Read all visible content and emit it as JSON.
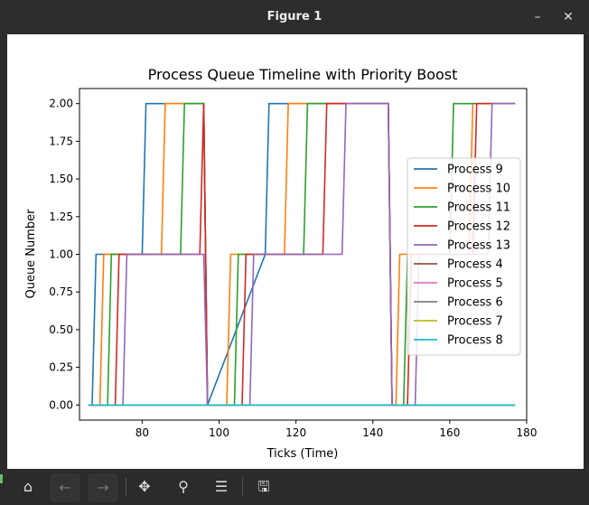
{
  "window": {
    "title": "Figure 1",
    "minimize_glyph": "–",
    "close_glyph": "✕"
  },
  "toolbar": {
    "icons": [
      "home-icon",
      "back-arrow-icon",
      "forward-arrow-icon",
      "pan-move-icon",
      "zoom-magnifier-icon",
      "subplot-config-icon",
      "save-floppy-icon"
    ],
    "glyphs": {
      "home": "⌂",
      "back": "←",
      "forward": "→",
      "pan": "✥",
      "zoom": "⚲",
      "configure": "☰",
      "save": "🖫"
    }
  },
  "chart_data": {
    "type": "line",
    "title": "Process Queue Timeline with Priority Boost",
    "xlabel": "Ticks (Time)",
    "ylabel": "Queue Number",
    "xlim": [
      63.7,
      180.0
    ],
    "ylim": [
      -0.1,
      2.1
    ],
    "xticks": [
      80,
      100,
      120,
      140,
      160,
      180
    ],
    "yticks": [
      0.0,
      0.25,
      0.5,
      0.75,
      1.0,
      1.25,
      1.5,
      1.75,
      2.0
    ],
    "ytick_labels": [
      "0.00",
      "0.25",
      "0.50",
      "0.75",
      "1.00",
      "1.25",
      "1.50",
      "1.75",
      "2.00"
    ],
    "grid": false,
    "legend_position": "center-right",
    "series": [
      {
        "name": "Process 9",
        "color": "#1f77b4",
        "x": [
          66,
          67,
          68,
          80,
          81,
          96,
          97,
          112,
          113,
          144,
          145,
          177
        ],
        "y": [
          0,
          0,
          1,
          1,
          2,
          2,
          0,
          1,
          2,
          2,
          0,
          0
        ]
      },
      {
        "name": "Process 10",
        "color": "#ff7f0e",
        "x": [
          66,
          69,
          70,
          85,
          86,
          96,
          97,
          102,
          103,
          117,
          118,
          144,
          145,
          146,
          147,
          165,
          166,
          177
        ],
        "y": [
          0,
          0,
          1,
          1,
          2,
          2,
          0,
          0,
          1,
          1,
          2,
          2,
          0,
          0,
          1,
          1,
          2,
          2
        ]
      },
      {
        "name": "Process 11",
        "color": "#2ca02c",
        "x": [
          66,
          71,
          72,
          90,
          91,
          96,
          97,
          104,
          105,
          122,
          123,
          144,
          145,
          148,
          149,
          160,
          161,
          177
        ],
        "y": [
          0,
          0,
          1,
          1,
          2,
          2,
          0,
          0,
          1,
          1,
          2,
          2,
          0,
          0,
          1,
          1,
          2,
          2
        ]
      },
      {
        "name": "Process 12",
        "color": "#d62728",
        "x": [
          66,
          73,
          74,
          95,
          96,
          97,
          106,
          107,
          127,
          128,
          144,
          145,
          149,
          150,
          166,
          167,
          177
        ],
        "y": [
          0,
          0,
          1,
          1,
          2,
          0,
          0,
          1,
          1,
          2,
          2,
          0,
          0,
          1,
          1,
          2,
          2
        ]
      },
      {
        "name": "Process 13",
        "color": "#9467bd",
        "x": [
          66,
          75,
          76,
          96,
          97,
          108,
          109,
          132,
          133,
          144,
          145,
          151,
          152,
          170,
          171,
          177
        ],
        "y": [
          0,
          0,
          1,
          1,
          0,
          0,
          1,
          1,
          2,
          2,
          0,
          0,
          1,
          1,
          2,
          2
        ]
      },
      {
        "name": "Process 4",
        "color": "#8c564b",
        "x": [
          66,
          177
        ],
        "y": [
          0,
          0
        ]
      },
      {
        "name": "Process 5",
        "color": "#e377c2",
        "x": [
          66,
          177
        ],
        "y": [
          0,
          0
        ]
      },
      {
        "name": "Process 6",
        "color": "#7f7f7f",
        "x": [
          66,
          177
        ],
        "y": [
          0,
          0
        ]
      },
      {
        "name": "Process 7",
        "color": "#bcbd22",
        "x": [
          66,
          177
        ],
        "y": [
          0,
          0
        ]
      },
      {
        "name": "Process 8",
        "color": "#17becf",
        "x": [
          66,
          177
        ],
        "y": [
          0,
          0
        ]
      }
    ]
  }
}
